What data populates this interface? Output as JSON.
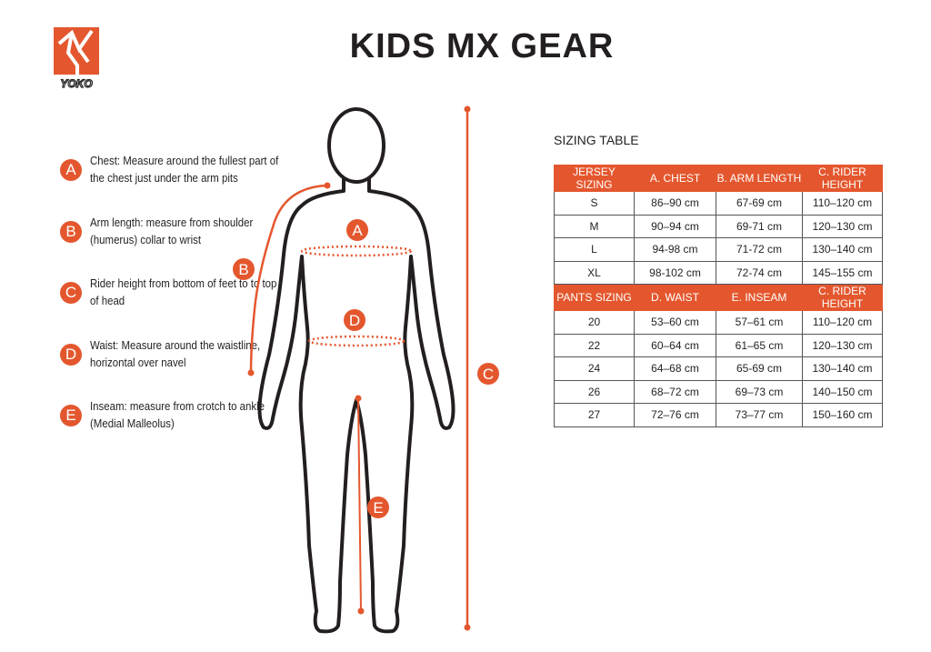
{
  "logo": {
    "text": "YOKO",
    "color": "#e4572e"
  },
  "title": "KIDS MX GEAR",
  "legend": [
    {
      "letter": "A",
      "text": "Chest: Measure around  the fullest part of the chest just under the arm pits"
    },
    {
      "letter": "B",
      "text": "Arm length: measure from shoulder (humerus) collar to wrist"
    },
    {
      "letter": "C",
      "text": "Rider height from bottom of feet to to top of head"
    },
    {
      "letter": "D",
      "text": "Waist: Measure around the waistline, horizontal over navel"
    },
    {
      "letter": "E",
      "text": "Inseam: measure from crotch to ankle (Medial Malleolus)"
    }
  ],
  "figure_labels": {
    "a": "A",
    "b": "B",
    "c": "C",
    "d": "D",
    "e": "E"
  },
  "accent_color": "#e4572e",
  "table": {
    "caption": "SIZING TABLE",
    "jersey_header": [
      "JERSEY SIZING",
      "A. CHEST",
      "B. ARM LENGTH",
      "C. RIDER HEIGHT"
    ],
    "jersey_rows": [
      [
        "S",
        "86–90 cm",
        "67-69 cm",
        "110–120 cm"
      ],
      [
        "M",
        "90–94 cm",
        "69-71 cm",
        "120–130 cm"
      ],
      [
        "L",
        "94-98 cm",
        "71-72 cm",
        "130–140 cm"
      ],
      [
        "XL",
        "98-102 cm",
        "72-74 cm",
        "145–155 cm"
      ]
    ],
    "pants_header": [
      "PANTS SIZING",
      "D. WAIST",
      "E. INSEAM",
      "C. RIDER HEIGHT"
    ],
    "pants_rows": [
      [
        "20",
        "53–60 cm",
        "57–61 cm",
        "110–120 cm"
      ],
      [
        "22",
        "60–64 cm",
        "61–65 cm",
        "120–130 cm"
      ],
      [
        "24",
        "64–68 cm",
        "65-69 cm",
        "130–140 cm"
      ],
      [
        "26",
        "68–72 cm",
        "69–73 cm",
        "140–150 cm"
      ],
      [
        "27",
        "72–76 cm",
        "73–77 cm",
        "150–160 cm"
      ]
    ]
  }
}
